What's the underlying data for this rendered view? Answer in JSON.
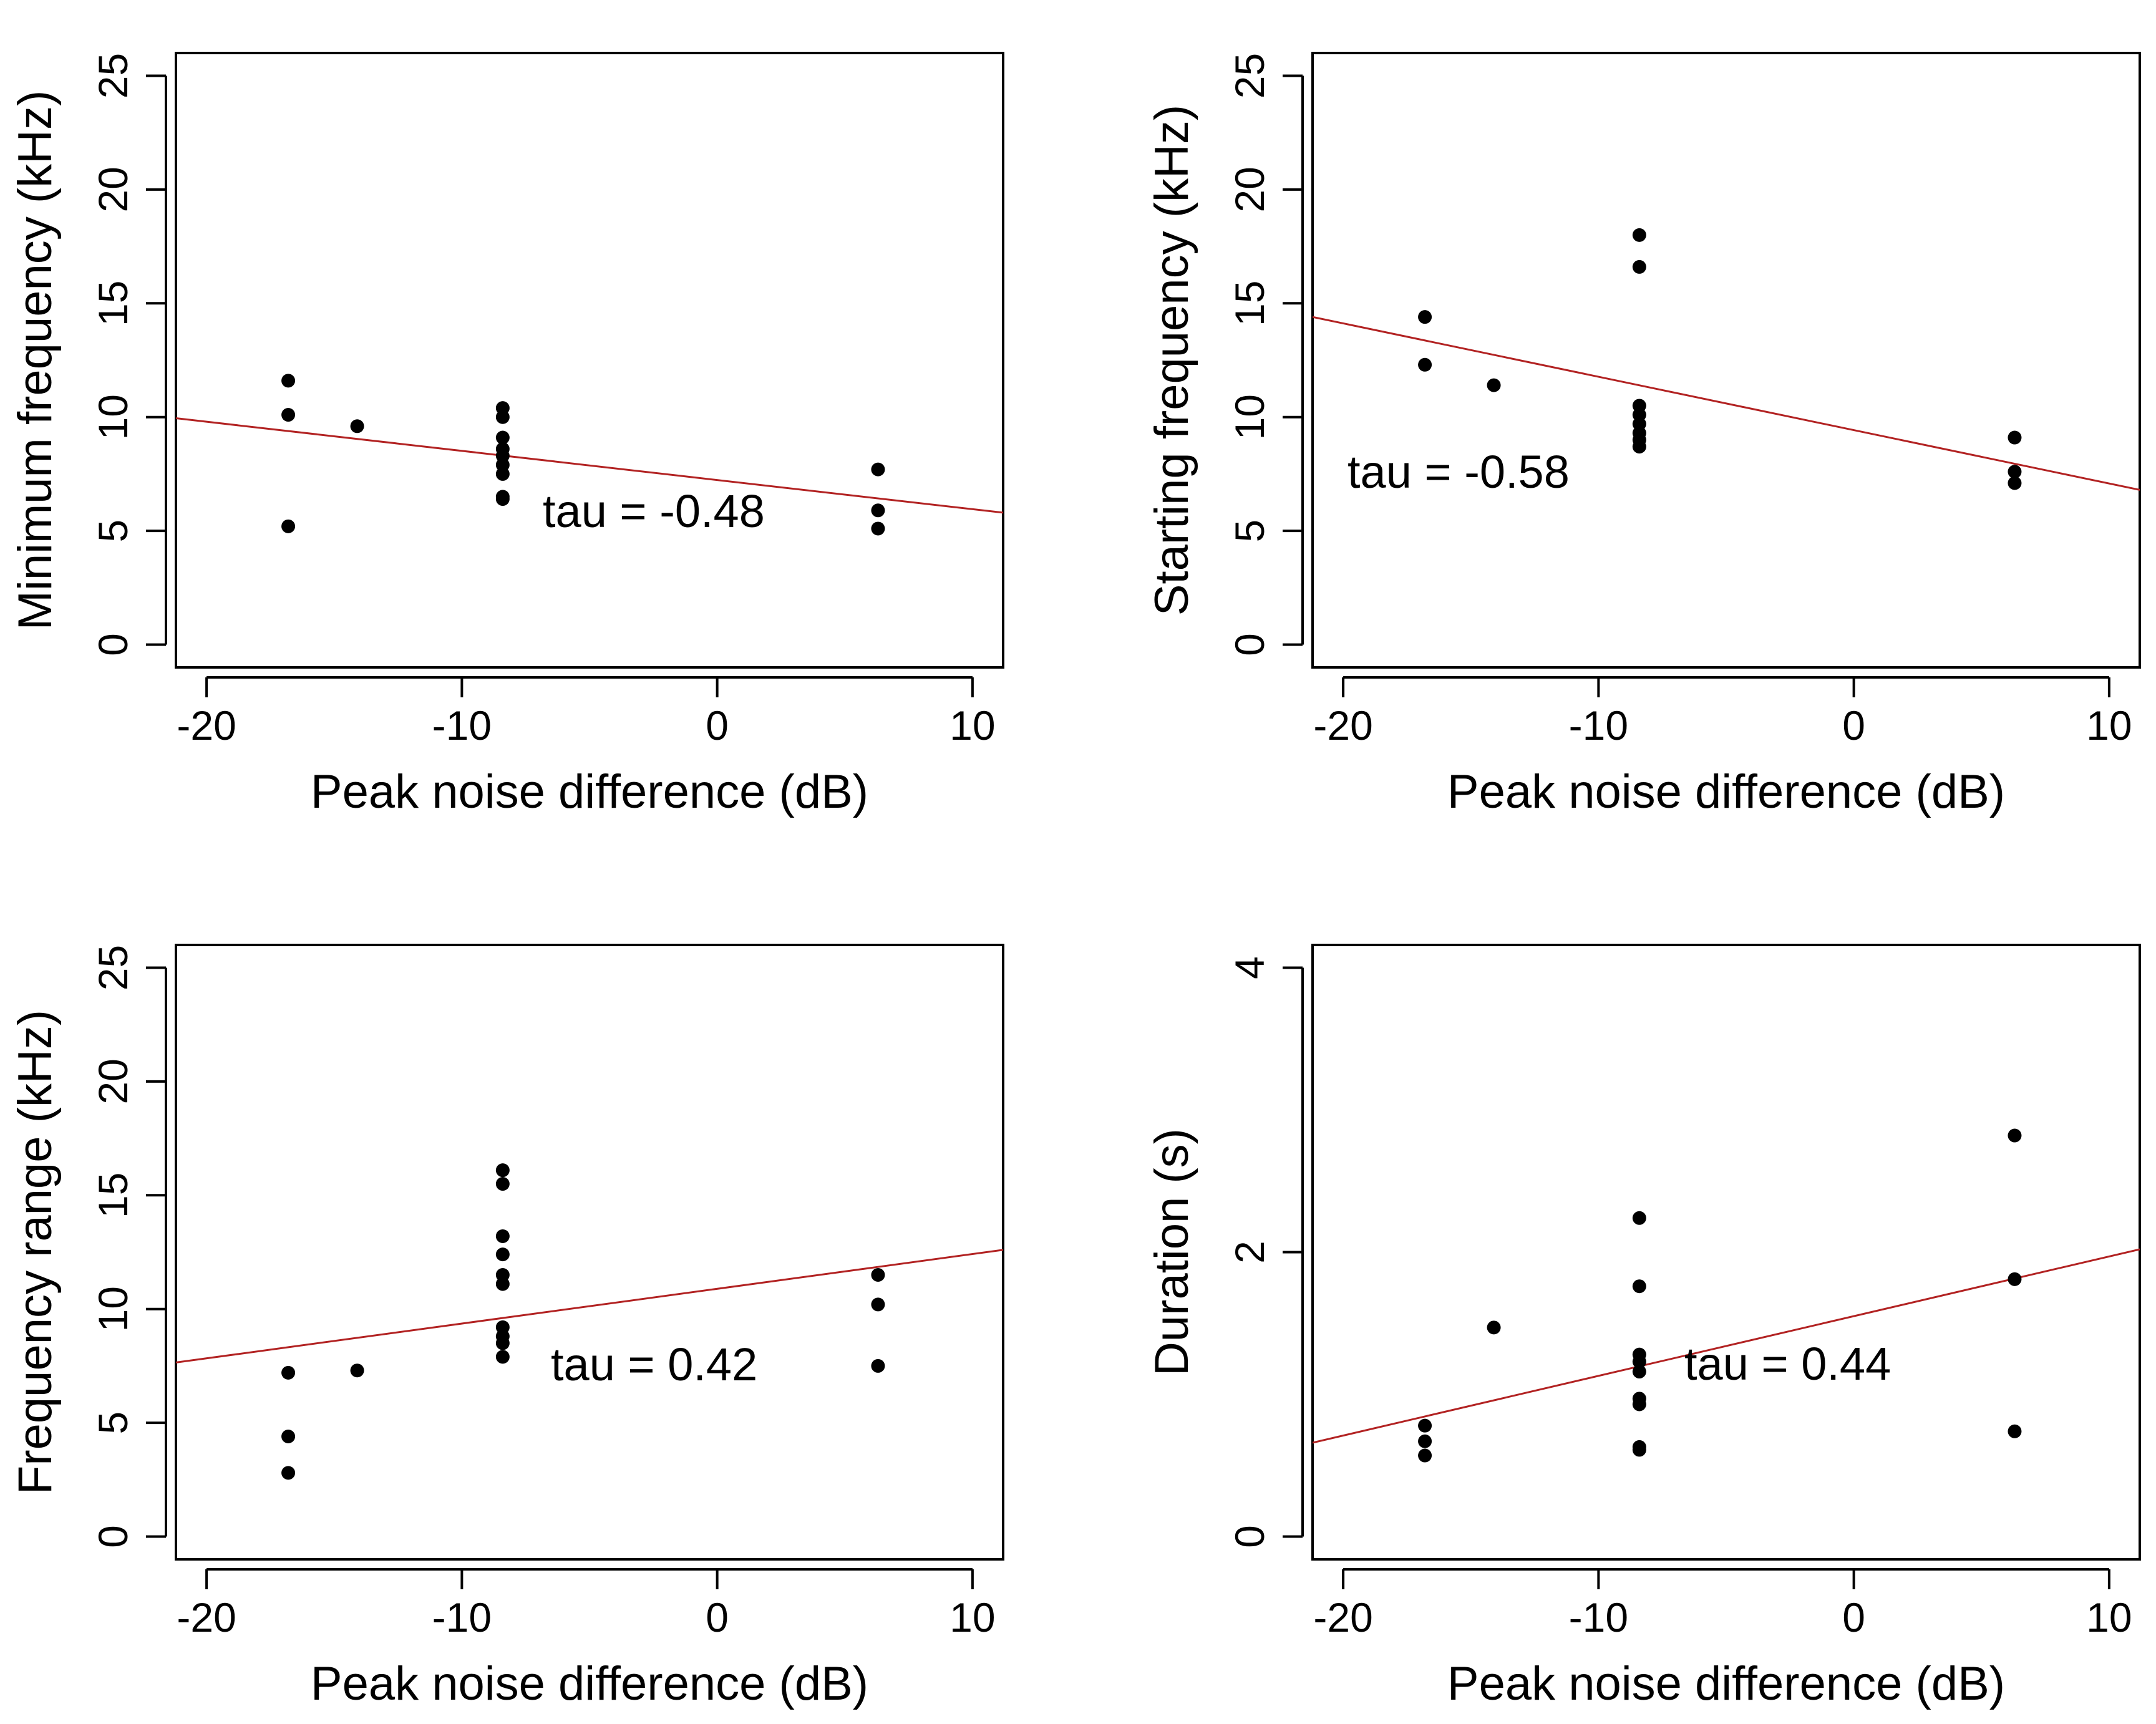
{
  "chart_data": [
    {
      "type": "scatter",
      "panel": "top-left",
      "xlabel": "Peak noise difference (dB)",
      "ylabel": "Minimum frequency (kHz)",
      "xlim": [
        -21.2,
        11.2
      ],
      "ylim": [
        -1,
        26
      ],
      "xticks": [
        -20,
        -10,
        0,
        10
      ],
      "yticks": [
        0,
        5,
        10,
        15,
        20,
        25
      ],
      "x": [
        -16.8,
        -16.8,
        -16.8,
        -14.1,
        -8.4,
        -8.4,
        -8.4,
        -8.4,
        -8.4,
        -8.4,
        -8.4,
        -8.4,
        -8.4,
        6.3,
        6.3,
        6.3
      ],
      "y": [
        11.6,
        10.1,
        5.2,
        9.6,
        10.4,
        10.0,
        9.1,
        8.6,
        8.3,
        7.9,
        7.5,
        6.4,
        6.5,
        7.7,
        5.9,
        5.1
      ],
      "fit_line": {
        "x": [
          -21.2,
          11.2
        ],
        "y": [
          9.95,
          5.8
        ],
        "color": "#b22222"
      },
      "annotation": "tau = -0.48"
    },
    {
      "type": "scatter",
      "panel": "top-right",
      "xlabel": "Peak noise difference (dB)",
      "ylabel": "Starting frequency (kHz)",
      "xlim": [
        -21.2,
        11.2
      ],
      "ylim": [
        -1,
        26
      ],
      "xticks": [
        -20,
        -10,
        0,
        10
      ],
      "yticks": [
        0,
        5,
        10,
        15,
        20,
        25
      ],
      "x": [
        -16.8,
        -16.8,
        -14.1,
        -8.4,
        -8.4,
        -8.4,
        -8.4,
        -8.4,
        -8.4,
        -8.4,
        -8.4,
        6.3,
        6.3,
        6.3
      ],
      "y": [
        14.4,
        12.3,
        11.4,
        18.0,
        16.6,
        10.5,
        10.1,
        9.7,
        9.3,
        9.0,
        8.7,
        9.1,
        7.6,
        7.1
      ],
      "fit_line": {
        "x": [
          -21.2,
          11.2
        ],
        "y": [
          14.4,
          6.8
        ],
        "color": "#b22222"
      },
      "annotation": "tau = -0.58"
    },
    {
      "type": "scatter",
      "panel": "bottom-left",
      "xlabel": "Peak noise difference (dB)",
      "ylabel": "Frequency range (kHz)",
      "xlim": [
        -21.2,
        11.2
      ],
      "ylim": [
        -1,
        26
      ],
      "xticks": [
        -20,
        -10,
        0,
        10
      ],
      "yticks": [
        0,
        5,
        10,
        15,
        20,
        25
      ],
      "x": [
        -16.8,
        -16.8,
        -16.8,
        -14.1,
        -8.4,
        -8.4,
        -8.4,
        -8.4,
        -8.4,
        -8.4,
        -8.4,
        -8.4,
        -8.4,
        -8.4,
        6.3,
        6.3,
        6.3
      ],
      "y": [
        7.2,
        4.4,
        2.8,
        7.3,
        16.1,
        15.5,
        13.2,
        12.4,
        11.5,
        11.1,
        9.2,
        8.8,
        8.5,
        7.9,
        11.5,
        10.2,
        7.5
      ],
      "fit_line": {
        "x": [
          -21.2,
          11.2
        ],
        "y": [
          7.65,
          12.6
        ],
        "color": "#b22222"
      },
      "annotation": "tau = 0.42"
    },
    {
      "type": "scatter",
      "panel": "bottom-right",
      "xlabel": "Peak noise difference (dB)",
      "ylabel": "Duration (s)",
      "xlim": [
        -21.2,
        11.2
      ],
      "ylim": [
        -0.16,
        4.16
      ],
      "xticks": [
        -20,
        -10,
        0,
        10
      ],
      "yticks": [
        0,
        2,
        4
      ],
      "x": [
        -16.8,
        -16.8,
        -16.8,
        -14.1,
        -8.4,
        -8.4,
        -8.4,
        -8.4,
        -8.4,
        -8.4,
        -8.4,
        -8.4,
        -8.4,
        6.3,
        6.3,
        6.3
      ],
      "y": [
        0.78,
        0.67,
        0.57,
        1.47,
        2.24,
        1.76,
        1.28,
        1.23,
        1.16,
        0.97,
        0.93,
        0.63,
        0.61,
        2.82,
        1.81,
        0.74
      ],
      "fit_line": {
        "x": [
          -21.2,
          11.2
        ],
        "y": [
          0.66,
          2.02
        ],
        "color": "#b22222"
      },
      "annotation": "tau = 0.44"
    }
  ]
}
